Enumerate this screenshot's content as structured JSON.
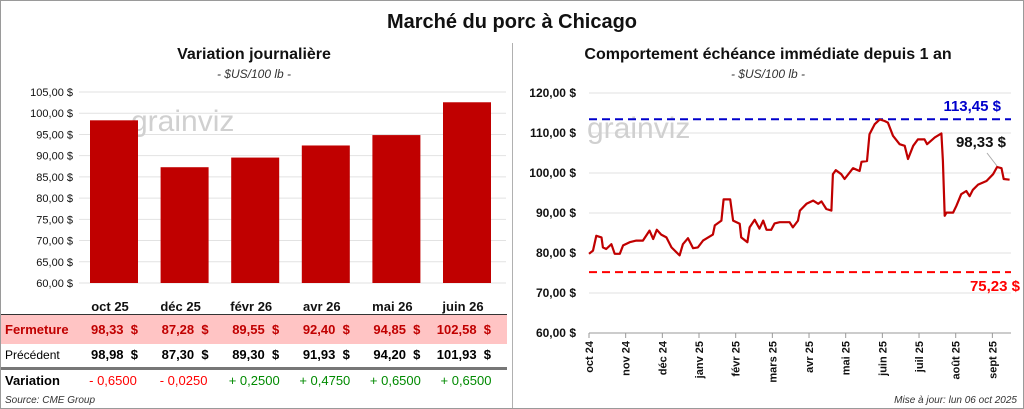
{
  "title": "Marché du porc à Chicago",
  "left": {
    "subtitle": "Variation journalière",
    "unit": "- $US/100 lb -",
    "watermark": "grainviz",
    "chart_data": {
      "type": "bar",
      "title": "Variation journalière",
      "ylabel": "$US/100 lb",
      "ylim": [
        60,
        105
      ],
      "yticks": [
        "60,00 $",
        "65,00 $",
        "70,00 $",
        "75,00 $",
        "80,00 $",
        "85,00 $",
        "90,00 $",
        "95,00 $",
        "100,00 $",
        "105,00 $"
      ],
      "categories": [
        "oct 25",
        "déc 25",
        "févr 26",
        "avr 26",
        "mai 26",
        "juin 26"
      ],
      "values": [
        98.33,
        87.28,
        89.55,
        92.4,
        94.85,
        102.58
      ],
      "color": "#c00000"
    },
    "table": {
      "rows": [
        {
          "label": "Fermeture",
          "values": [
            "98,33  $",
            "87,28  $",
            "89,55  $",
            "92,40  $",
            "94,85  $",
            "102,58  $"
          ]
        },
        {
          "label": "Précédent",
          "values": [
            "98,98  $",
            "87,30  $",
            "89,30  $",
            "91,93  $",
            "94,20  $",
            "101,93  $"
          ]
        },
        {
          "label": "Variation",
          "values": [
            "- 0,6500",
            "- 0,0250",
            "+ 0,2500",
            "+ 0,4750",
            "+ 0,6500",
            "+ 0,6500"
          ]
        }
      ],
      "colors": {
        "up": "#008a00",
        "down": "#ff0000",
        "close": "#c00000",
        "close_bg": "#ffc4c4"
      }
    },
    "source": "Source: CME Group"
  },
  "right": {
    "subtitle": "Comportement échéance immédiate depuis 1 an",
    "unit": "- $US/100 lb -",
    "watermark": "grainviz",
    "chart_data": {
      "type": "line",
      "title": "Comportement échéance immédiate depuis 1 an",
      "ylim": [
        60,
        120
      ],
      "yticks": [
        "60,00 $",
        "70,00 $",
        "80,00 $",
        "90,00 $",
        "100,00 $",
        "110,00 $",
        "120,00 $"
      ],
      "xticks": [
        "oct 24",
        "nov 24",
        "déc 24",
        "janv 25",
        "févr 25",
        "mars 25",
        "avr 25",
        "mai 25",
        "juin 25",
        "juil 25",
        "août 25",
        "sept 25"
      ],
      "x_unit": "months since oct 24",
      "series": [
        {
          "name": "Échéance immédiate",
          "color": "#c00000",
          "points": [
            [
              0,
              79.8
            ],
            [
              0.11,
              80.6
            ],
            [
              0.2,
              84.3
            ],
            [
              0.34,
              83.9
            ],
            [
              0.38,
              81.4
            ],
            [
              0.47,
              81
            ],
            [
              0.61,
              82.2
            ],
            [
              0.7,
              79.8
            ],
            [
              0.84,
              79.8
            ],
            [
              0.93,
              81.9
            ],
            [
              1.11,
              82.7
            ],
            [
              1.29,
              83.1
            ],
            [
              1.47,
              83.1
            ],
            [
              1.65,
              85.6
            ],
            [
              1.75,
              83.5
            ],
            [
              1.85,
              85.8
            ],
            [
              1.97,
              84.6
            ],
            [
              2.11,
              83.9
            ],
            [
              2.25,
              81.4
            ],
            [
              2.47,
              79.4
            ],
            [
              2.56,
              82.2
            ],
            [
              2.7,
              83.7
            ],
            [
              2.84,
              81.2
            ],
            [
              2.97,
              81.4
            ],
            [
              3.11,
              83.1
            ],
            [
              3.38,
              84.6
            ],
            [
              3.43,
              86.9
            ],
            [
              3.61,
              88.1
            ],
            [
              3.67,
              93.4
            ],
            [
              3.85,
              93.4
            ],
            [
              3.93,
              88.1
            ],
            [
              4.11,
              87.3
            ],
            [
              4.15,
              83.9
            ],
            [
              4.32,
              82.7
            ],
            [
              4.38,
              86.4
            ],
            [
              4.52,
              88.3
            ],
            [
              4.65,
              86.1
            ],
            [
              4.75,
              88.1
            ],
            [
              4.84,
              85.8
            ],
            [
              4.97,
              85.8
            ],
            [
              5.06,
              87.4
            ],
            [
              5.2,
              87.7
            ],
            [
              5.47,
              87.7
            ],
            [
              5.56,
              86.4
            ],
            [
              5.7,
              88.1
            ],
            [
              5.75,
              90.6
            ],
            [
              5.93,
              92.3
            ],
            [
              6.11,
              93.1
            ],
            [
              6.25,
              92.3
            ],
            [
              6.34,
              92.9
            ],
            [
              6.47,
              91
            ],
            [
              6.61,
              90.6
            ],
            [
              6.65,
              99.7
            ],
            [
              6.73,
              100.7
            ],
            [
              6.88,
              99.7
            ],
            [
              6.97,
              98.5
            ],
            [
              7.2,
              101.2
            ],
            [
              7.38,
              100.5
            ],
            [
              7.43,
              102.8
            ],
            [
              7.58,
              103
            ],
            [
              7.65,
              109.7
            ],
            [
              7.79,
              112.2
            ],
            [
              7.93,
              113.4
            ],
            [
              8.06,
              113
            ],
            [
              8.15,
              112.6
            ],
            [
              8.29,
              109.3
            ],
            [
              8.47,
              107.2
            ],
            [
              8.61,
              106.8
            ],
            [
              8.7,
              103.5
            ],
            [
              8.84,
              106.8
            ],
            [
              8.97,
              108.4
            ],
            [
              9.15,
              108.4
            ],
            [
              9.22,
              107.2
            ],
            [
              9.43,
              108.9
            ],
            [
              9.61,
              109.9
            ],
            [
              9.65,
              103
            ],
            [
              9.7,
              89.3
            ],
            [
              9.75,
              90.1
            ],
            [
              9.93,
              90.1
            ],
            [
              10.02,
              91.8
            ],
            [
              10.15,
              94.7
            ],
            [
              10.29,
              95.5
            ],
            [
              10.38,
              94.2
            ],
            [
              10.47,
              95.8
            ],
            [
              10.61,
              97.1
            ],
            [
              10.84,
              98
            ],
            [
              11.02,
              99.7
            ],
            [
              11.13,
              101.5
            ],
            [
              11.25,
              101.2
            ],
            [
              11.31,
              98.5
            ],
            [
              11.47,
              98.33
            ]
          ]
        }
      ],
      "reference_lines": [
        {
          "label": "113,45 $",
          "value": 113.45,
          "color": "#0000cc"
        },
        {
          "label": "75,23 $",
          "value": 75.23,
          "color": "#ff0000"
        }
      ],
      "last_label": "98,33 $"
    },
    "updated": "Mise à jour: lun 06 oct 2025"
  }
}
